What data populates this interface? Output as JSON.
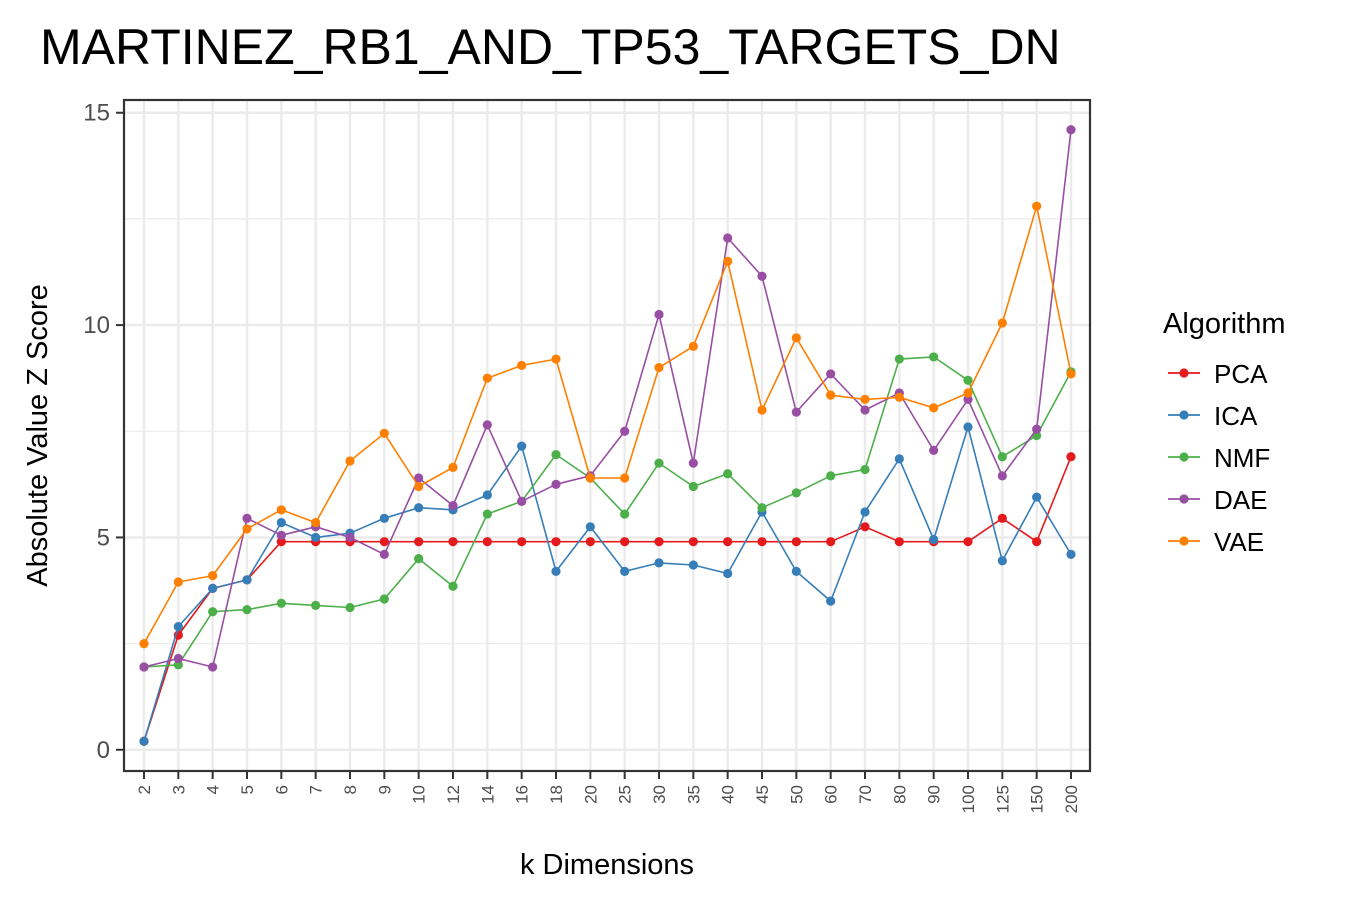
{
  "chart_data": {
    "type": "line",
    "title": "MARTINEZ_RB1_AND_TP53_TARGETS_DN",
    "xlabel": "k Dimensions",
    "ylabel": "Absolute Value Z Score",
    "categories": [
      "2",
      "3",
      "4",
      "5",
      "6",
      "7",
      "8",
      "9",
      "10",
      "12",
      "14",
      "16",
      "18",
      "20",
      "25",
      "30",
      "35",
      "40",
      "45",
      "50",
      "60",
      "70",
      "80",
      "90",
      "100",
      "125",
      "150",
      "200"
    ],
    "ylim": [
      -0.5,
      15.3
    ],
    "yticks": [
      0,
      5,
      10,
      15
    ],
    "grid": true,
    "legend": {
      "title": "Algorithm",
      "position": "right"
    },
    "series": [
      {
        "name": "PCA",
        "color": "#e41a1c",
        "values": [
          0.2,
          2.7,
          3.8,
          4.0,
          4.9,
          4.9,
          4.9,
          4.9,
          4.9,
          4.9,
          4.9,
          4.9,
          4.9,
          4.9,
          4.9,
          4.9,
          4.9,
          4.9,
          4.9,
          4.9,
          4.9,
          5.25,
          4.9,
          4.9,
          4.9,
          5.45,
          4.9,
          6.9
        ]
      },
      {
        "name": "ICA",
        "color": "#377eb8",
        "values": [
          0.2,
          2.9,
          3.8,
          4.0,
          5.35,
          5.0,
          5.1,
          5.45,
          5.7,
          5.65,
          6.0,
          7.15,
          4.2,
          5.25,
          4.2,
          4.4,
          4.35,
          4.15,
          5.6,
          4.2,
          3.5,
          5.6,
          6.85,
          4.95,
          7.6,
          4.45,
          5.95,
          4.6
        ]
      },
      {
        "name": "NMF",
        "color": "#4daf4a",
        "values": [
          1.95,
          2.0,
          3.25,
          3.3,
          3.45,
          3.4,
          3.35,
          3.55,
          4.5,
          3.85,
          5.55,
          5.85,
          6.95,
          6.4,
          5.55,
          6.75,
          6.2,
          6.5,
          5.7,
          6.05,
          6.45,
          6.6,
          9.2,
          9.25,
          8.7,
          6.9,
          7.4,
          8.9
        ]
      },
      {
        "name": "DAE",
        "color": "#984ea3",
        "values": [
          1.95,
          2.15,
          1.95,
          5.45,
          5.05,
          5.25,
          5.0,
          4.6,
          6.4,
          5.75,
          7.65,
          5.85,
          6.25,
          6.45,
          7.5,
          10.25,
          6.75,
          12.05,
          11.15,
          7.95,
          8.85,
          8.0,
          8.4,
          7.05,
          8.25,
          6.45,
          7.55,
          14.6
        ]
      },
      {
        "name": "VAE",
        "color": "#ff7f00",
        "values": [
          2.5,
          3.95,
          4.1,
          5.2,
          5.65,
          5.35,
          6.8,
          7.45,
          6.2,
          6.65,
          8.75,
          9.05,
          9.2,
          6.4,
          6.4,
          9.0,
          9.5,
          11.5,
          8.0,
          9.7,
          8.35,
          8.25,
          8.3,
          8.05,
          8.4,
          10.05,
          12.8,
          8.85
        ]
      }
    ]
  }
}
